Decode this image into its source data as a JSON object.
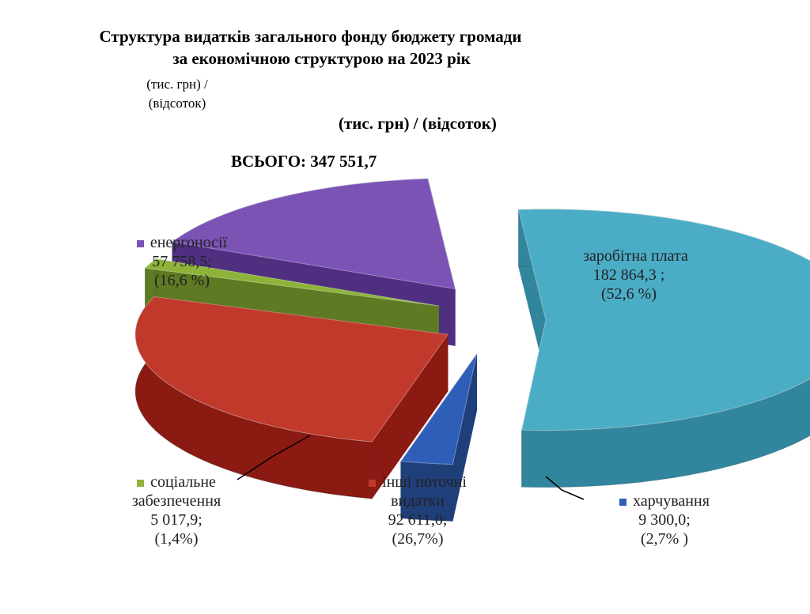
{
  "header": {
    "title_line1": "Структура видатків загального фонду  бюджету громади",
    "title_line2": "за економічною структурою на 2023 рік",
    "units_small_1": "(тис. грн) /",
    "units_small_2": "(відсоток)",
    "units_big": "(тис. грн) / (відсоток)",
    "total": "ВСЬОГО: 347 551,7"
  },
  "chart_data": {
    "type": "pie",
    "style": "3d-exploded",
    "total": 347551.7,
    "slices": [
      {
        "name": "заробітна плата",
        "value": 182864.3,
        "value_text": "182 864,3 ;",
        "pct_text": "(52,6 %)",
        "color": "#4bacc6",
        "side": "#31859c",
        "legend": [
          "заробітна плата"
        ]
      },
      {
        "name": "харчування",
        "value": 9300.0,
        "value_text": "9 300,0;",
        "pct_text": "(2,7% )",
        "color": "#2e5eb8",
        "side": "#1f3f7a",
        "legend": [
          "харчування"
        ]
      },
      {
        "name": "інші поточні видатки",
        "value": 92611.0,
        "value_text": "92 611,0;",
        "pct_text": "(26,7%)",
        "color": "#c0392b",
        "side": "#8b1a12",
        "legend": [
          "інші поточні",
          "видатки"
        ]
      },
      {
        "name": "соціальне забезпечення",
        "value": 5017.9,
        "value_text": "5 017,9;",
        "pct_text": "(1,4%)",
        "color": "#8db33a",
        "side": "#5e7a22",
        "legend": [
          "соціальне",
          "забезпечення"
        ]
      },
      {
        "name": "енергоносії",
        "value": 57758.5,
        "value_text": "57 758,5;",
        "pct_text": "(16,6 %)",
        "color": "#7a53b5",
        "side": "#4f3080",
        "legend": [
          "енергоносії"
        ]
      }
    ]
  }
}
